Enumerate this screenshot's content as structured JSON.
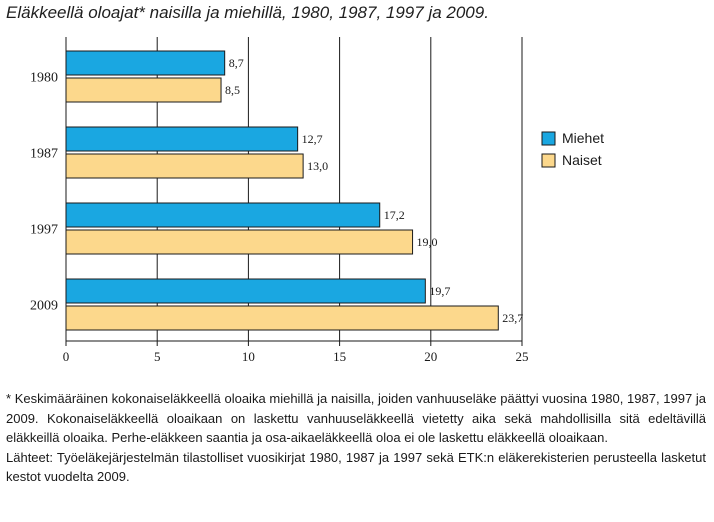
{
  "title": "Eläkkeellä oloajat* naisilla ja miehillä, 1980, 1987, 1997 ja 2009.",
  "footnote": "* Keskimääräinen kokonaiseläkkeellä oloaika miehillä ja naisilla, joiden vanhuuseläke päättyi vuosina 1980, 1987, 1997 ja 2009. Kokonaiseläkkeellä oloaikaan on laskettu vanhuuseläkkeellä vietetty aika sekä mahdollisilla sitä edeltävillä eläkkeillä oloaika. Perhe-eläkkeen saantia ja osa-aikaeläkkeellä oloa ei ole laskettu eläkkeellä oloaikaan.",
  "source": "Lähteet: Työeläkejärjestelmän tilastolliset vuosikirjat 1980, 1987 ja 1997 sekä ETK:n eläkerekisterien perusteella lasketut kestot vuodelta 2009.",
  "chart_data": {
    "type": "bar",
    "orientation": "horizontal",
    "title": "Eläkkeellä oloajat* naisilla ja miehillä, 1980, 1987, 1997 ja 2009.",
    "categories": [
      "1980",
      "1987",
      "1997",
      "2009"
    ],
    "series": [
      {
        "name": "Miehet",
        "values": [
          8.7,
          12.7,
          17.2,
          19.7
        ],
        "labels": [
          "8,7",
          "12,7",
          "17,2",
          "19,7"
        ],
        "color": "#1aa7e1"
      },
      {
        "name": "Naiset",
        "values": [
          8.5,
          13.0,
          19.0,
          23.7
        ],
        "labels": [
          "8,5",
          "13,0",
          "19,0",
          "23,7"
        ],
        "color": "#fcd88c"
      }
    ],
    "xlim": [
      0,
      25
    ],
    "xticks": [
      0,
      5,
      10,
      15,
      20,
      25
    ],
    "grid": true,
    "legend": "right",
    "bar_stroke": "#1a1a1a"
  }
}
